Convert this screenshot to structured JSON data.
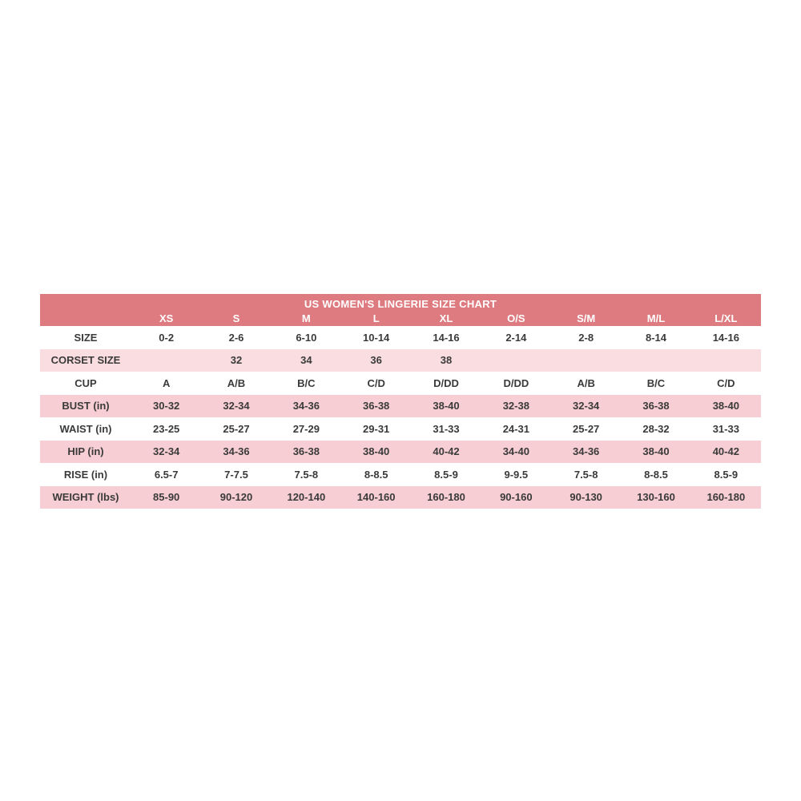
{
  "colors": {
    "header_bg": "#de7b80",
    "row_pink_light": "#fadde0",
    "row_pink": "#f7ced4",
    "row_white": "#ffffff",
    "header_text": "#ffffff",
    "body_text": "#3a3a3a",
    "page_bg": "#ffffff"
  },
  "chart_data": {
    "type": "table",
    "title": "US WOMEN'S LINGERIE SIZE CHART",
    "columns": [
      "",
      "XS",
      "S",
      "M",
      "L",
      "XL",
      "O/S",
      "S/M",
      "M/L",
      "L/XL"
    ],
    "rows": [
      {
        "label": "SIZE",
        "shade": "white",
        "values": [
          "0-2",
          "2-6",
          "6-10",
          "10-14",
          "14-16",
          "2-14",
          "2-8",
          "8-14",
          "14-16"
        ]
      },
      {
        "label": "CORSET SIZE",
        "shade": "pink-light",
        "values": [
          "",
          "32",
          "34",
          "36",
          "38",
          "",
          "",
          "",
          ""
        ]
      },
      {
        "label": "CUP",
        "shade": "white",
        "values": [
          "A",
          "A/B",
          "B/C",
          "C/D",
          "D/DD",
          "D/DD",
          "A/B",
          "B/C",
          "C/D"
        ]
      },
      {
        "label": "BUST (in)",
        "shade": "pink",
        "values": [
          "30-32",
          "32-34",
          "34-36",
          "36-38",
          "38-40",
          "32-38",
          "32-34",
          "36-38",
          "38-40"
        ]
      },
      {
        "label": "WAIST (in)",
        "shade": "white",
        "values": [
          "23-25",
          "25-27",
          "27-29",
          "29-31",
          "31-33",
          "24-31",
          "25-27",
          "28-32",
          "31-33"
        ]
      },
      {
        "label": "HIP (in)",
        "shade": "pink",
        "values": [
          "32-34",
          "34-36",
          "36-38",
          "38-40",
          "40-42",
          "34-40",
          "34-36",
          "38-40",
          "40-42"
        ]
      },
      {
        "label": "RISE (in)",
        "shade": "white",
        "values": [
          "6.5-7",
          "7-7.5",
          "7.5-8",
          "8-8.5",
          "8.5-9",
          "9-9.5",
          "7.5-8",
          "8-8.5",
          "8.5-9"
        ]
      },
      {
        "label": "WEIGHT (lbs)",
        "shade": "pink",
        "values": [
          "85-90",
          "90-120",
          "120-140",
          "140-160",
          "160-180",
          "90-160",
          "90-130",
          "130-160",
          "160-180"
        ]
      }
    ]
  }
}
